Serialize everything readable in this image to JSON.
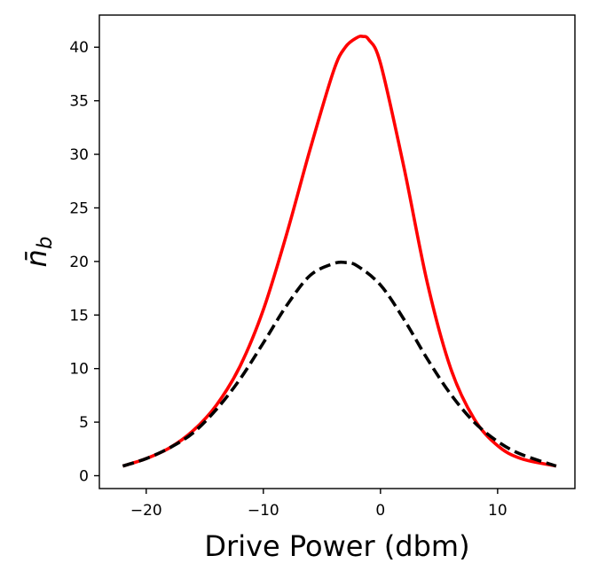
{
  "chart_data": {
    "type": "line",
    "title": "",
    "xlabel": "Drive Power (dbm)",
    "ylabel": "n̄",
    "ylabel_subscript": "b",
    "xlim": [
      -24.0,
      16.6
    ],
    "ylim": [
      -1.2,
      43.0
    ],
    "x_ticks": [
      -20,
      -10,
      0,
      10
    ],
    "x_tick_labels": [
      "−20",
      "−10",
      "0",
      "10"
    ],
    "y_ticks": [
      0,
      5,
      10,
      15,
      20,
      25,
      30,
      35,
      40
    ],
    "y_tick_labels": [
      "0",
      "5",
      "10",
      "15",
      "20",
      "25",
      "30",
      "35",
      "40"
    ],
    "grid": false,
    "legend": "none",
    "series": [
      {
        "style": "solid",
        "color": "#ff0000",
        "x": [
          -22,
          -20,
          -18,
          -16,
          -14,
          -12,
          -10,
          -8,
          -6,
          -4,
          -3,
          -2,
          -1.5,
          -1,
          0,
          2,
          4,
          6,
          8,
          10,
          12,
          15
        ],
        "y": [
          0.9,
          1.6,
          2.6,
          4.2,
          6.6,
          10.2,
          15.5,
          22.6,
          30.5,
          37.8,
          40.0,
          40.9,
          41.0,
          40.7,
          38.5,
          28.8,
          18.0,
          10.0,
          5.3,
          2.8,
          1.6,
          0.9
        ]
      },
      {
        "style": "dashed",
        "color": "#000000",
        "x": [
          -22,
          -20,
          -18,
          -16,
          -14,
          -12,
          -10,
          -8,
          -6,
          -4,
          -3,
          -2,
          0,
          2,
          4,
          6,
          8,
          10,
          12,
          15
        ],
        "y": [
          0.9,
          1.6,
          2.6,
          4.0,
          6.2,
          9.0,
          12.4,
          15.9,
          18.7,
          19.8,
          19.9,
          19.6,
          17.8,
          14.6,
          10.9,
          7.6,
          5.0,
          3.2,
          2.0,
          0.9
        ]
      }
    ]
  }
}
